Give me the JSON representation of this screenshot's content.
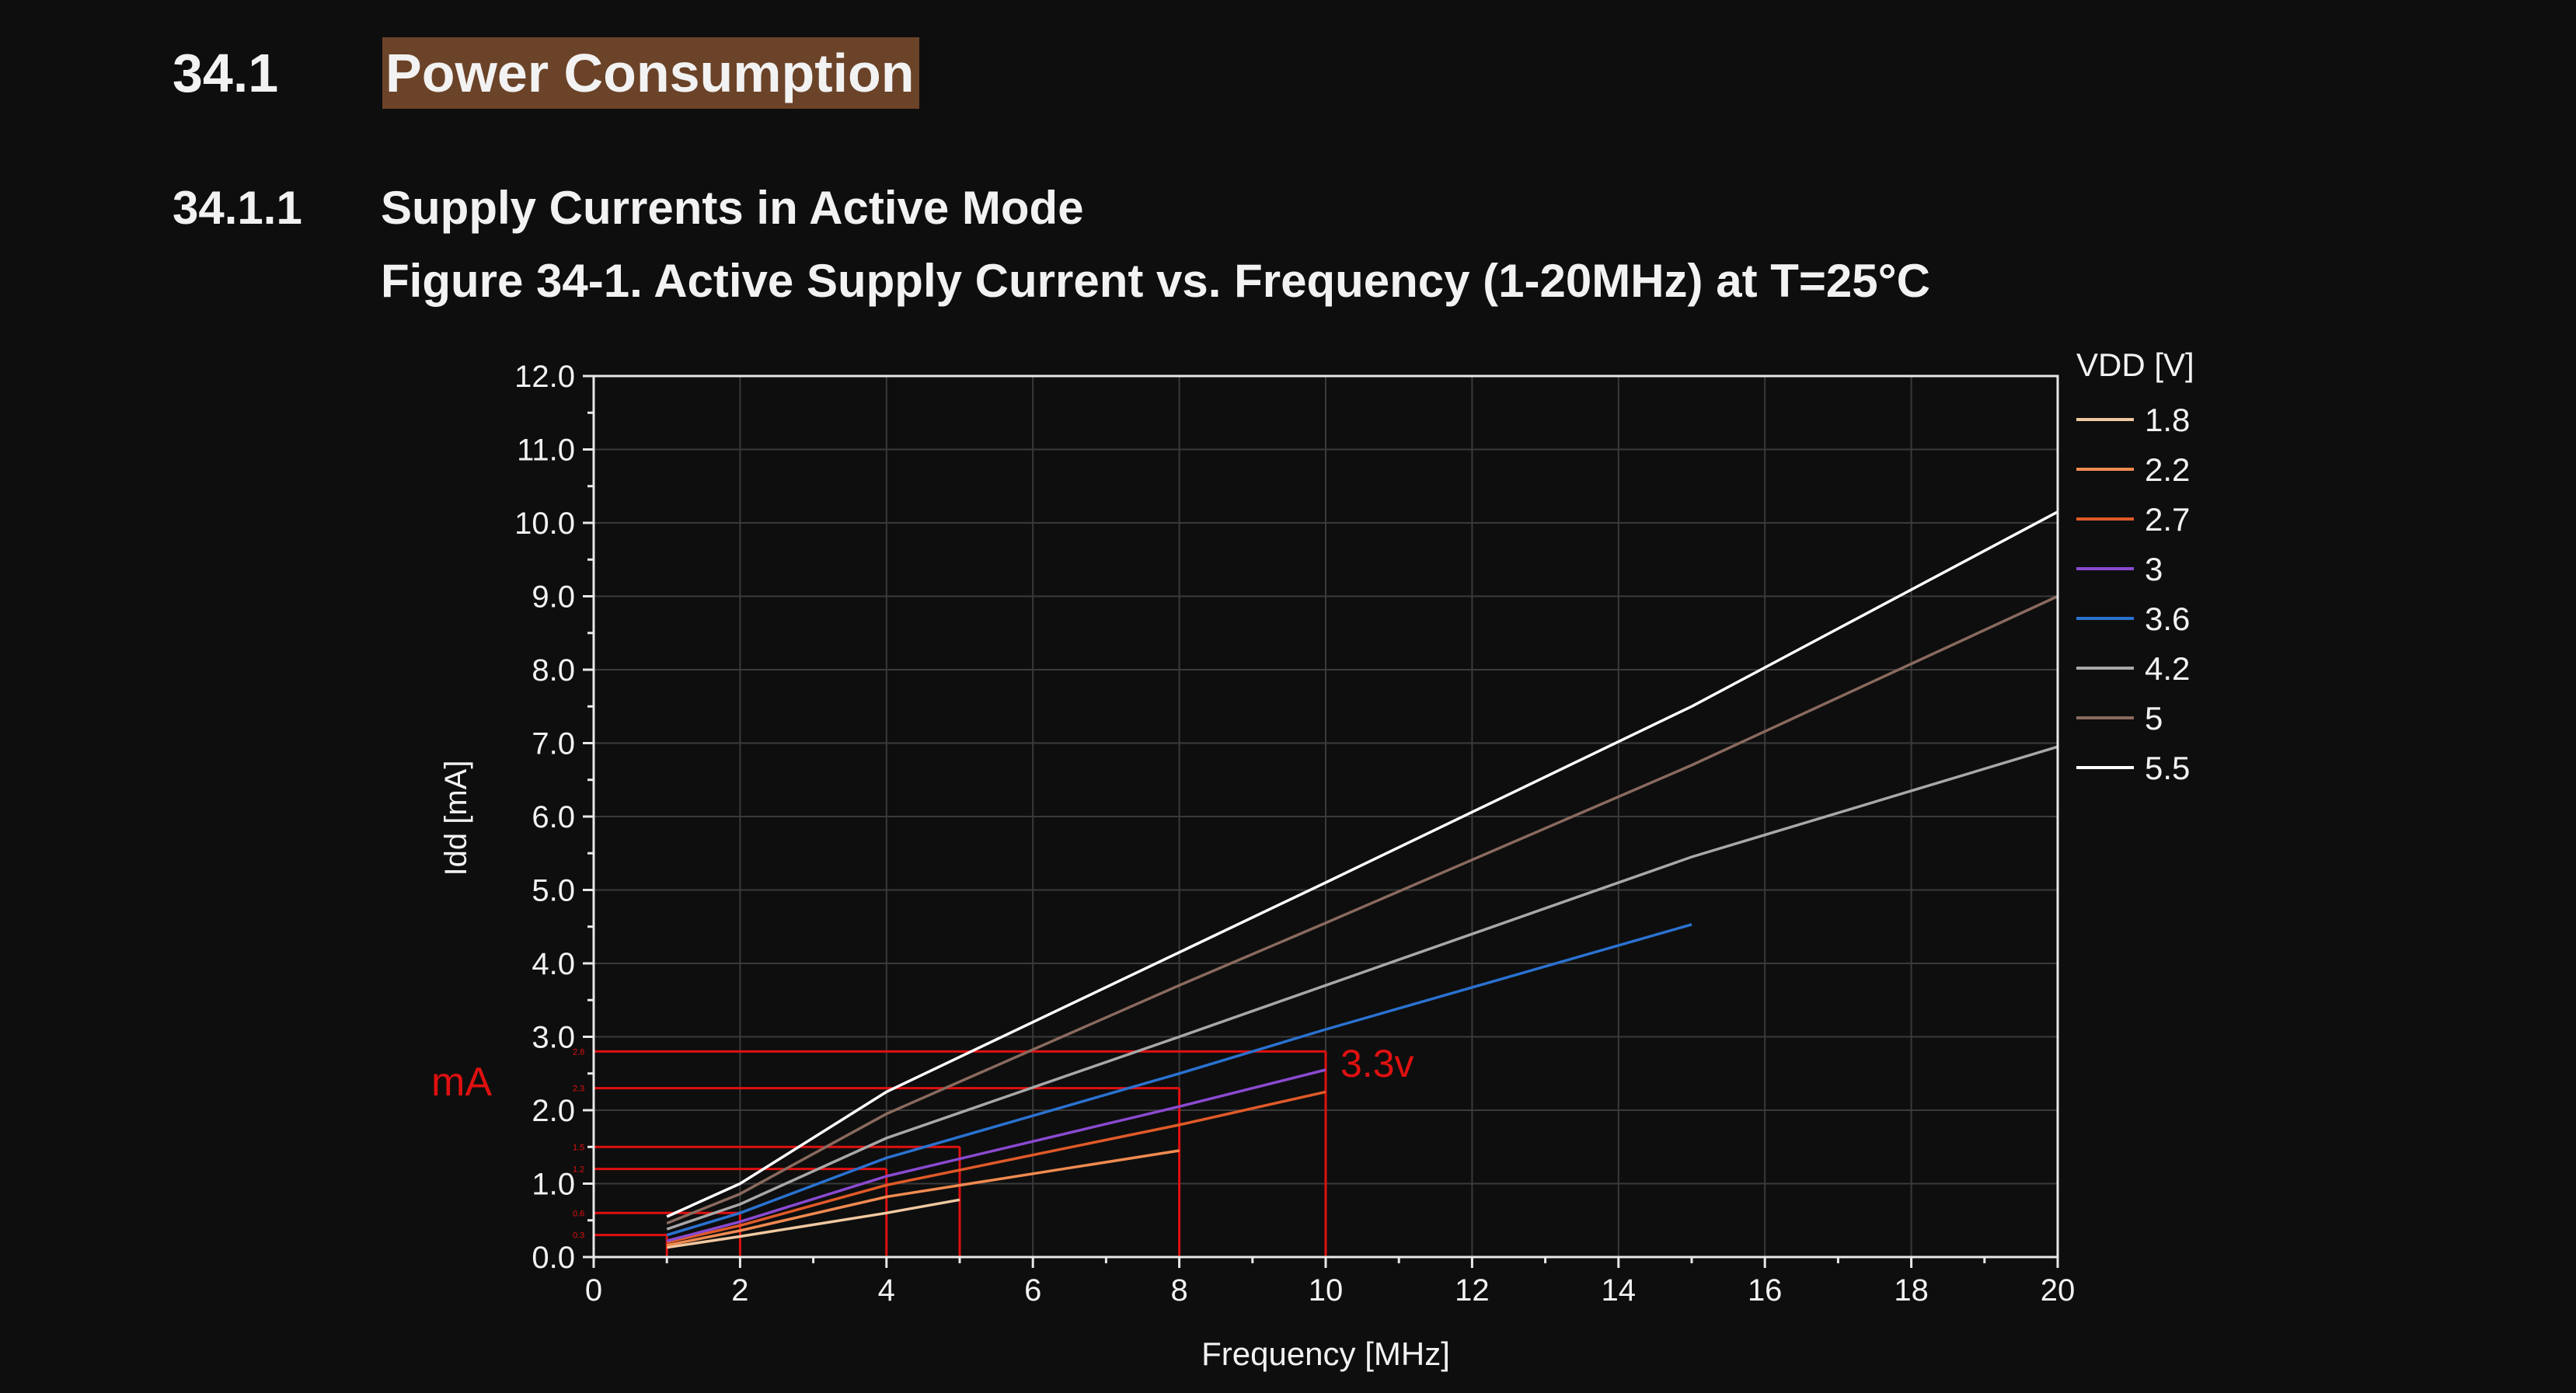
{
  "section": {
    "number": "34.1",
    "title": "Power Consumption"
  },
  "subsection": {
    "number": "34.1.1",
    "title": "Supply Currents in Active Mode"
  },
  "figure_caption": "Figure 34-1.  Active Supply Current vs. Frequency (1-20MHz) at T=25°C",
  "colors": {
    "background": "#0e0e0e",
    "title_highlight": "#6b4328",
    "annotation_red": "#e01010",
    "series": [
      "#f0c8a0",
      "#f08a50",
      "#e05a28",
      "#8a4ad0",
      "#2a72d0",
      "#a8a8a8",
      "#8a6a5e",
      "#ffffff"
    ]
  },
  "chart_data": {
    "type": "line",
    "title": "Figure 34-1.  Active Supply Current vs. Frequency (1-20MHz) at T=25°C",
    "xlabel": "Frequency [MHz]",
    "ylabel": "Idd [mA]",
    "xlim": [
      0,
      20
    ],
    "ylim": [
      0,
      12
    ],
    "x_ticks": [
      "0",
      "2",
      "4",
      "6",
      "8",
      "10",
      "12",
      "14",
      "16",
      "18",
      "20"
    ],
    "y_ticks": [
      "0.0",
      "1.0",
      "2.0",
      "3.0",
      "4.0",
      "5.0",
      "6.0",
      "7.0",
      "8.0",
      "9.0",
      "10.0",
      "11.0",
      "12.0"
    ],
    "grid": true,
    "legend": {
      "title": "VDD [V]",
      "placement": "right"
    },
    "series": [
      {
        "name": "1.8",
        "color": "#f0c8a0",
        "points": [
          [
            1,
            0.13
          ],
          [
            2,
            0.28
          ],
          [
            4,
            0.6
          ],
          [
            5,
            0.78
          ]
        ]
      },
      {
        "name": "2.2",
        "color": "#f08a50",
        "points": [
          [
            1,
            0.16
          ],
          [
            2,
            0.36
          ],
          [
            4,
            0.82
          ],
          [
            8,
            1.45
          ]
        ]
      },
      {
        "name": "2.7",
        "color": "#e05a28",
        "points": [
          [
            1,
            0.2
          ],
          [
            2,
            0.43
          ],
          [
            4,
            0.98
          ],
          [
            8,
            1.8
          ],
          [
            10,
            2.25
          ]
        ]
      },
      {
        "name": "3",
        "color": "#8a4ad0",
        "points": [
          [
            1,
            0.22
          ],
          [
            2,
            0.48
          ],
          [
            4,
            1.1
          ],
          [
            8,
            2.05
          ],
          [
            10,
            2.55
          ]
        ]
      },
      {
        "name": "3.6",
        "color": "#2a72d0",
        "points": [
          [
            1,
            0.3
          ],
          [
            2,
            0.6
          ],
          [
            4,
            1.35
          ],
          [
            8,
            2.5
          ],
          [
            10,
            3.1
          ],
          [
            15,
            4.53
          ]
        ]
      },
      {
        "name": "4.2",
        "color": "#a8a8a8",
        "points": [
          [
            1,
            0.38
          ],
          [
            2,
            0.72
          ],
          [
            4,
            1.62
          ],
          [
            8,
            3.0
          ],
          [
            10,
            3.7
          ],
          [
            15,
            5.45
          ],
          [
            20,
            6.95
          ]
        ]
      },
      {
        "name": "5",
        "color": "#8a6a5e",
        "points": [
          [
            1,
            0.46
          ],
          [
            2,
            0.86
          ],
          [
            4,
            1.95
          ],
          [
            8,
            3.7
          ],
          [
            10,
            4.55
          ],
          [
            15,
            6.7
          ],
          [
            20,
            9.0
          ]
        ]
      },
      {
        "name": "5.5",
        "color": "#ffffff",
        "points": [
          [
            1,
            0.55
          ],
          [
            2,
            1.0
          ],
          [
            4,
            2.25
          ],
          [
            8,
            4.15
          ],
          [
            10,
            5.1
          ],
          [
            15,
            7.5
          ],
          [
            20,
            10.15
          ]
        ]
      }
    ],
    "annotations": {
      "y_unit_label": "mA",
      "voltage_label": "3.3v",
      "guides": [
        {
          "x": 1,
          "y": 0.3,
          "label": "0.3"
        },
        {
          "x": 2,
          "y": 0.6,
          "label": "0.6"
        },
        {
          "x": 4,
          "y": 1.2,
          "label": "1.2"
        },
        {
          "x": 5,
          "y": 1.5,
          "label": "1.5"
        },
        {
          "x": 8,
          "y": 2.3,
          "label": "2.3"
        },
        {
          "x": 10,
          "y": 2.8,
          "label": "2.8"
        }
      ]
    }
  }
}
